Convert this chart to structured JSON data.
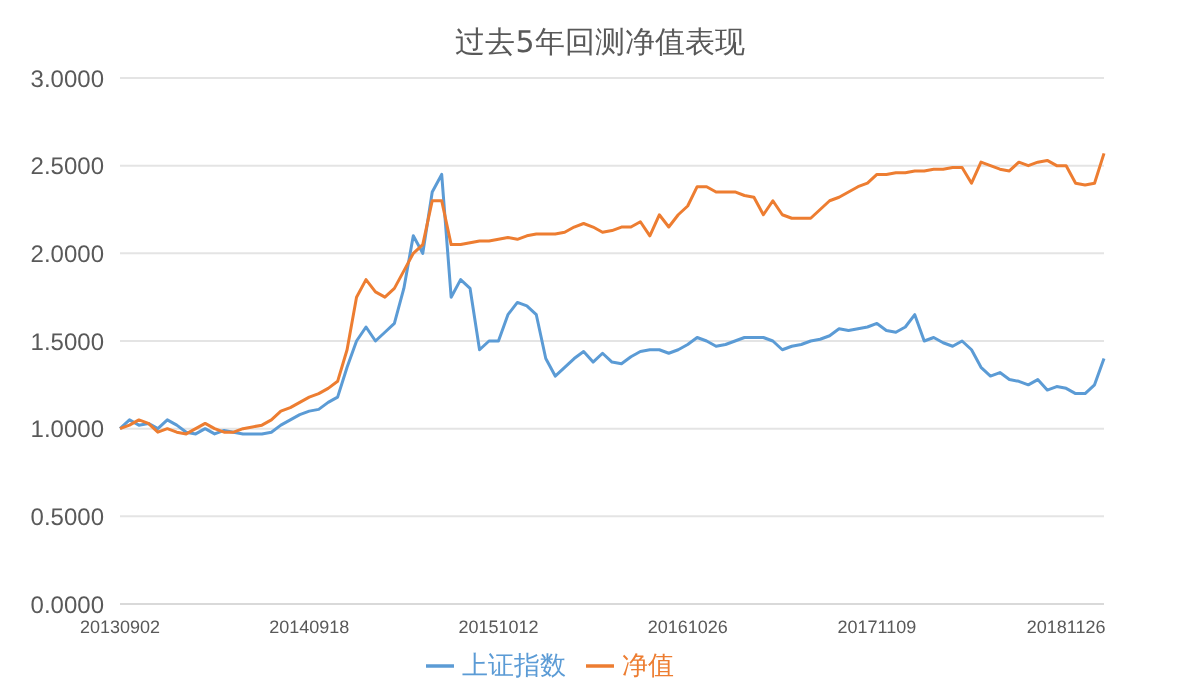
{
  "chart_data": {
    "type": "line",
    "title": "过去5年回测净值表现",
    "categories": [
      "20130902",
      null,
      null,
      null,
      null,
      null,
      null,
      null,
      null,
      null,
      null,
      null,
      null,
      null,
      null,
      null,
      null,
      null,
      null,
      null,
      "20140918",
      null,
      null,
      null,
      null,
      null,
      null,
      null,
      null,
      null,
      null,
      null,
      null,
      null,
      null,
      null,
      null,
      null,
      null,
      null,
      "20151012",
      null,
      null,
      null,
      null,
      null,
      null,
      null,
      null,
      null,
      null,
      null,
      null,
      null,
      null,
      null,
      null,
      null,
      null,
      null,
      "20161026",
      null,
      null,
      null,
      null,
      null,
      null,
      null,
      null,
      null,
      null,
      null,
      null,
      null,
      null,
      null,
      null,
      null,
      null,
      null,
      "20171109",
      null,
      null,
      null,
      null,
      null,
      null,
      null,
      null,
      null,
      null,
      null,
      null,
      null,
      null,
      null,
      null,
      null,
      null,
      null,
      "20181126",
      null,
      null,
      null,
      null
    ],
    "series": [
      {
        "name": "上证指数",
        "color": "#5b9bd5",
        "values": [
          1.0,
          1.05,
          1.02,
          1.03,
          1.0,
          1.05,
          1.02,
          0.98,
          0.97,
          1.0,
          0.97,
          0.99,
          0.98,
          0.97,
          0.97,
          0.97,
          0.98,
          1.02,
          1.05,
          1.08,
          1.1,
          1.11,
          1.15,
          1.18,
          1.35,
          1.5,
          1.58,
          1.5,
          1.55,
          1.6,
          1.8,
          2.1,
          2.0,
          2.35,
          2.45,
          1.75,
          1.85,
          1.8,
          1.45,
          1.5,
          1.5,
          1.65,
          1.72,
          1.7,
          1.65,
          1.4,
          1.3,
          1.35,
          1.4,
          1.44,
          1.38,
          1.43,
          1.38,
          1.37,
          1.41,
          1.44,
          1.45,
          1.45,
          1.43,
          1.45,
          1.48,
          1.52,
          1.5,
          1.47,
          1.48,
          1.5,
          1.52,
          1.52,
          1.52,
          1.5,
          1.45,
          1.47,
          1.48,
          1.5,
          1.51,
          1.53,
          1.57,
          1.56,
          1.57,
          1.58,
          1.6,
          1.56,
          1.55,
          1.58,
          1.65,
          1.5,
          1.52,
          1.49,
          1.47,
          1.5,
          1.45,
          1.35,
          1.3,
          1.32,
          1.28,
          1.27,
          1.25,
          1.28,
          1.22,
          1.24,
          1.23,
          1.2,
          1.2,
          1.25,
          1.4
        ]
      },
      {
        "name": "净值",
        "color": "#ed7d31",
        "values": [
          1.0,
          1.02,
          1.05,
          1.03,
          0.98,
          1.0,
          0.98,
          0.97,
          1.0,
          1.03,
          1.0,
          0.98,
          0.98,
          1.0,
          1.01,
          1.02,
          1.05,
          1.1,
          1.12,
          1.15,
          1.18,
          1.2,
          1.23,
          1.27,
          1.45,
          1.75,
          1.85,
          1.78,
          1.75,
          1.8,
          1.9,
          2.0,
          2.05,
          2.3,
          2.3,
          2.05,
          2.05,
          2.06,
          2.07,
          2.07,
          2.08,
          2.09,
          2.08,
          2.1,
          2.11,
          2.11,
          2.11,
          2.12,
          2.15,
          2.17,
          2.15,
          2.12,
          2.13,
          2.15,
          2.15,
          2.18,
          2.1,
          2.22,
          2.15,
          2.22,
          2.27,
          2.38,
          2.38,
          2.35,
          2.35,
          2.35,
          2.33,
          2.32,
          2.22,
          2.3,
          2.22,
          2.2,
          2.2,
          2.2,
          2.25,
          2.3,
          2.32,
          2.35,
          2.38,
          2.4,
          2.45,
          2.45,
          2.46,
          2.46,
          2.47,
          2.47,
          2.48,
          2.48,
          2.49,
          2.49,
          2.4,
          2.52,
          2.5,
          2.48,
          2.47,
          2.52,
          2.5,
          2.52,
          2.53,
          2.5,
          2.5,
          2.4,
          2.39,
          2.4,
          2.57
        ]
      }
    ],
    "ylim": [
      0,
      3
    ],
    "yticks": [
      {
        "value": 0,
        "label": "0.0000"
      },
      {
        "value": 0.5,
        "label": "0.5000"
      },
      {
        "value": 1,
        "label": "1.0000"
      },
      {
        "value": 1.5,
        "label": "1.5000"
      },
      {
        "value": 2,
        "label": "2.0000"
      },
      {
        "value": 2.5,
        "label": "2.5000"
      },
      {
        "value": 3,
        "label": "3.0000"
      }
    ],
    "grid": "y",
    "legend": "bottom",
    "marker": "none",
    "line_style": "solid"
  }
}
